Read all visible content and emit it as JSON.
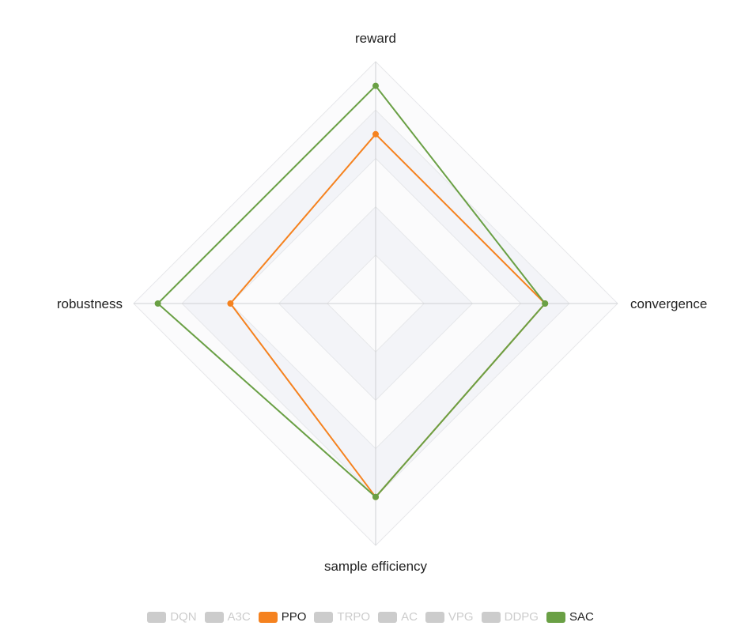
{
  "chart_data": {
    "type": "radar",
    "indicators": [
      "reward",
      "convergence",
      "sample efficiency",
      "robustness"
    ],
    "max": 100,
    "split_number": 5,
    "series": [
      {
        "name": "DQN",
        "values": [],
        "visible": false
      },
      {
        "name": "A3C",
        "values": [],
        "visible": false
      },
      {
        "name": "PPO",
        "values": [
          70,
          70,
          80,
          60
        ],
        "visible": true
      },
      {
        "name": "TRPO",
        "values": [],
        "visible": false
      },
      {
        "name": "AC",
        "values": [],
        "visible": false
      },
      {
        "name": "VPG",
        "values": [],
        "visible": false
      },
      {
        "name": "DDPG",
        "values": [],
        "visible": false
      },
      {
        "name": "SAC",
        "values": [
          90,
          70,
          80,
          90
        ],
        "visible": true
      }
    ],
    "legend_position": "bottom-center"
  },
  "colors": {
    "PPO": "#f5821f",
    "SAC": "#6aa045",
    "inactive": "#cccccc",
    "inactive_text": "#cccccc",
    "active_text": "#222222",
    "grid_line": "#e6e7ea",
    "axis_line": "#cfd0d3",
    "band_light": "#fbfbfc",
    "band_dark": "#f3f4f8"
  }
}
